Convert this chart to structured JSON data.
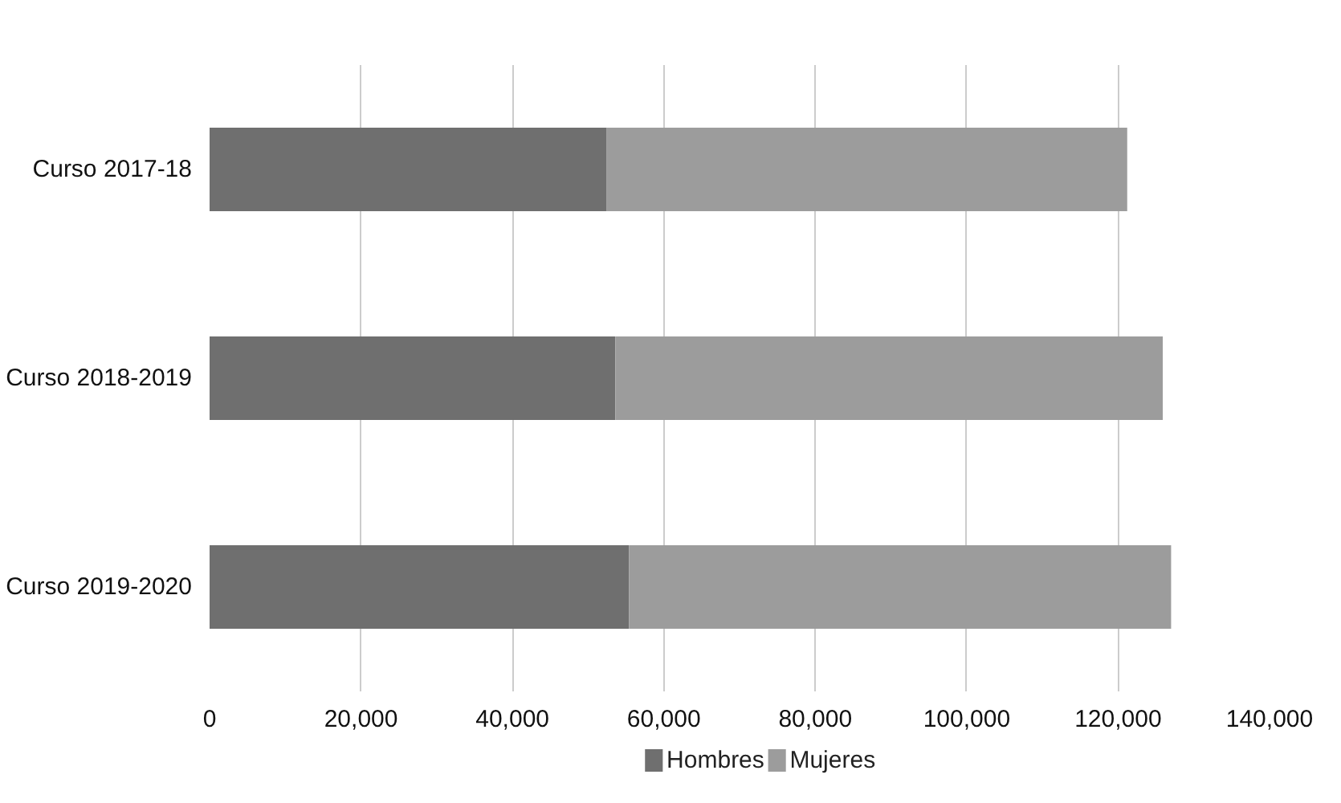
{
  "chart_data": {
    "type": "bar",
    "orientation": "horizontal",
    "stacked": true,
    "categories": [
      "Curso 2017-18",
      "Curso 2018-2019",
      "Curso 2019-2020"
    ],
    "series": [
      {
        "name": "Hombres",
        "color": "#6f6f6f",
        "values": [
          52400,
          53600,
          55400
        ]
      },
      {
        "name": "Mujeres",
        "color": "#9c9c9c",
        "values": [
          68800,
          72300,
          71600
        ]
      }
    ],
    "xlim": [
      0,
      140000
    ],
    "xticks": [
      {
        "value": 0,
        "label": "0"
      },
      {
        "value": 20000,
        "label": "20,000"
      },
      {
        "value": 40000,
        "label": "40,000"
      },
      {
        "value": 60000,
        "label": "60,000"
      },
      {
        "value": 80000,
        "label": "80,000"
      },
      {
        "value": 100000,
        "label": "100,000"
      },
      {
        "value": 120000,
        "label": "120,000"
      },
      {
        "value": 140000,
        "label": "140,000"
      }
    ],
    "grid": "x",
    "legend": "bottom"
  }
}
